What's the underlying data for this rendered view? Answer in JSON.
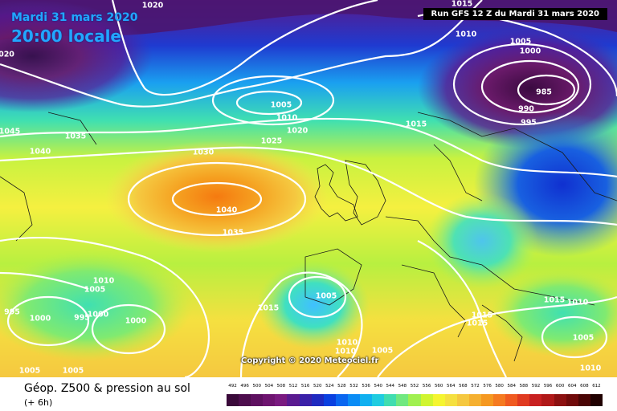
{
  "header": {
    "date": "Mardi 31 mars 2020",
    "time": "20:00 locale",
    "run": "Run GFS 12 Z du Mardi 31 mars 2020"
  },
  "copyright": "Copyright © 2020 Meteociel.fr",
  "caption": {
    "title": "Géop. Z500 & pression au sol",
    "subtitle": "(+ 6h)"
  },
  "isobars": [
    {
      "label": "1020",
      "id": "iso-1020-top"
    },
    {
      "label": "1015",
      "id": "iso-1015-top"
    },
    {
      "label": "1010",
      "id": "iso-1010-ne"
    },
    {
      "label": "1005",
      "id": "iso-1005-ne"
    },
    {
      "label": "1000",
      "id": "iso-1000-ne"
    },
    {
      "label": "985",
      "id": "iso-985"
    },
    {
      "label": "990",
      "id": "iso-990"
    },
    {
      "label": "995",
      "id": "iso-995-ne"
    },
    {
      "label": "020",
      "id": "iso-020-left"
    },
    {
      "label": "1005",
      "id": "iso-1005-center"
    },
    {
      "label": "1010",
      "id": "iso-1010-center"
    },
    {
      "label": "1020",
      "id": "iso-1020-center"
    },
    {
      "label": "1025",
      "id": "iso-1025"
    },
    {
      "label": "1015",
      "id": "iso-1015-east"
    },
    {
      "label": "1045",
      "id": "iso-1045"
    },
    {
      "label": "1035",
      "id": "iso-1035-nw"
    },
    {
      "label": "1040",
      "id": "iso-1040-w"
    },
    {
      "label": "1030",
      "id": "iso-1030"
    },
    {
      "label": "1040",
      "id": "iso-1040-high"
    },
    {
      "label": "1035",
      "id": "iso-1035-s"
    },
    {
      "label": "1010",
      "id": "iso-1010-sw"
    },
    {
      "label": "1005",
      "id": "iso-1005-sw"
    },
    {
      "label": "995",
      "id": "iso-995-sw"
    },
    {
      "label": "1000",
      "id": "iso-1000-sw"
    },
    {
      "label": "995",
      "id": "iso-995-sw2"
    },
    {
      "label": "1000",
      "id": "iso-1000-sw2"
    },
    {
      "label": "1000",
      "id": "iso-1000-sw3"
    },
    {
      "label": "1015",
      "id": "iso-1015-iberia"
    },
    {
      "label": "1005",
      "id": "iso-1005-iberia"
    },
    {
      "label": "1010",
      "id": "iso-1010-med"
    },
    {
      "label": "1010",
      "id": "iso-1010-med2"
    },
    {
      "label": "1005",
      "id": "iso-1005-med"
    },
    {
      "label": "1015",
      "id": "iso-1015-italy"
    },
    {
      "label": "1015",
      "id": "iso-1015-italy2"
    },
    {
      "label": "1015",
      "id": "iso-1015-balkans"
    },
    {
      "label": "1010",
      "id": "iso-1010-balkans"
    },
    {
      "label": "1005",
      "id": "iso-1005-se"
    },
    {
      "label": "1010",
      "id": "iso-1010-se"
    },
    {
      "label": "1005",
      "id": "iso-1005-bl1"
    },
    {
      "label": "1005",
      "id": "iso-1005-bl2"
    }
  ],
  "legend": {
    "labels": [
      "492",
      "496",
      "500",
      "504",
      "508",
      "512",
      "516",
      "520",
      "524",
      "528",
      "532",
      "536",
      "540",
      "544",
      "548",
      "552",
      "556",
      "560",
      "564",
      "568",
      "572",
      "576",
      "580",
      "584",
      "588",
      "592",
      "596",
      "600",
      "604",
      "608",
      "612"
    ],
    "colors": [
      "#3a0a3a",
      "#4d0d4d",
      "#5e1060",
      "#6e1470",
      "#7a1a80",
      "#5a1a90",
      "#3a20a8",
      "#1f2ac0",
      "#0a40e0",
      "#0a66f0",
      "#0a8cf5",
      "#10b0f0",
      "#20cce0",
      "#40ddb0",
      "#70e880",
      "#a0f050",
      "#d0f530",
      "#f5f530",
      "#f5e040",
      "#f5c840",
      "#f5b030",
      "#f59820",
      "#f57a20",
      "#f05a20",
      "#e03a20",
      "#c82020",
      "#b01818",
      "#8c1010",
      "#700a0a",
      "#4a0505",
      "#200000"
    ]
  }
}
